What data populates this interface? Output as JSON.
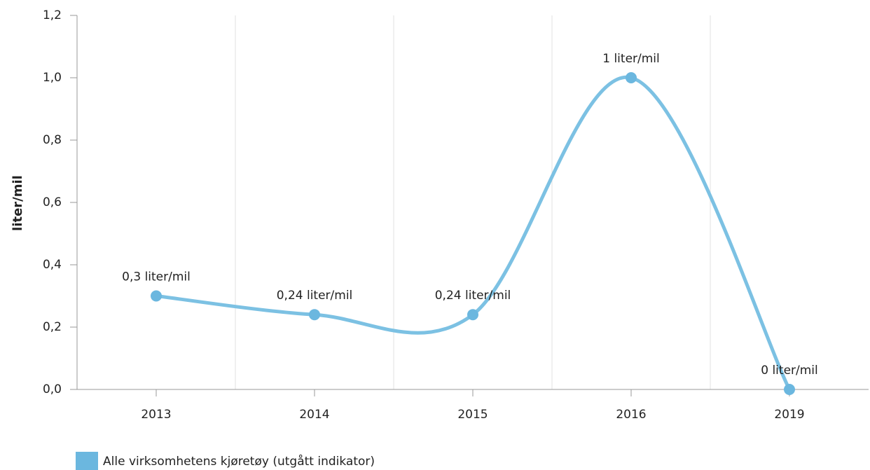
{
  "chart_data": {
    "type": "line",
    "ylabel": "liter/mil",
    "categories": [
      "2013",
      "2014",
      "2015",
      "2016",
      "2019"
    ],
    "series": [
      {
        "name": "Alle virksomhetens kjøretøy (utgått indikator)",
        "color": "#7cc1e3",
        "values": [
          0.3,
          0.24,
          0.24,
          1,
          0
        ],
        "value_labels": [
          "0,3 liter/mil",
          "0,24 liter/mil",
          "0,24 liter/mil",
          "1 liter/mil",
          "0 liter/mil"
        ]
      }
    ],
    "ylim": [
      0,
      1.2
    ],
    "yticks": [
      {
        "value": 0,
        "label": "0,0"
      },
      {
        "value": 0.2,
        "label": "0,2"
      },
      {
        "value": 0.4,
        "label": "0,4"
      },
      {
        "value": 0.6,
        "label": "0,6"
      },
      {
        "value": 0.8,
        "label": "0,8"
      },
      {
        "value": 1,
        "label": "1,0"
      },
      {
        "value": 1.2,
        "label": "1,2"
      }
    ],
    "grid": true
  }
}
